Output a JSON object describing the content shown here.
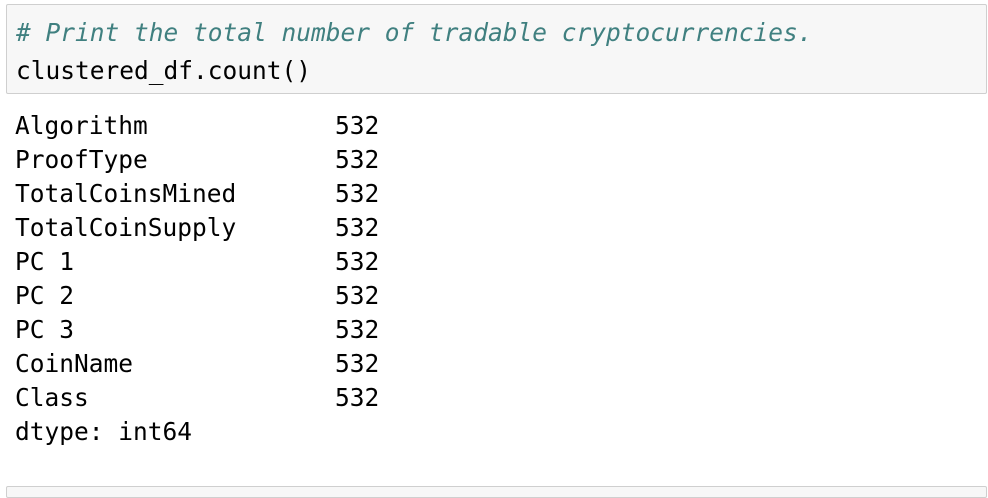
{
  "input_cell": {
    "comment": "# Print the total number of tradable cryptocurrencies.",
    "code": "clustered_df.count()"
  },
  "output": {
    "rows": [
      {
        "name": "Algorithm",
        "value": "532"
      },
      {
        "name": "ProofType",
        "value": "532"
      },
      {
        "name": "TotalCoinsMined",
        "value": "532"
      },
      {
        "name": "TotalCoinSupply",
        "value": "532"
      },
      {
        "name": "PC 1",
        "value": "532"
      },
      {
        "name": "PC 2",
        "value": "532"
      },
      {
        "name": "PC 3",
        "value": "532"
      },
      {
        "name": "CoinName",
        "value": "532"
      },
      {
        "name": "Class",
        "value": "532"
      }
    ],
    "dtype": "dtype: int64"
  }
}
